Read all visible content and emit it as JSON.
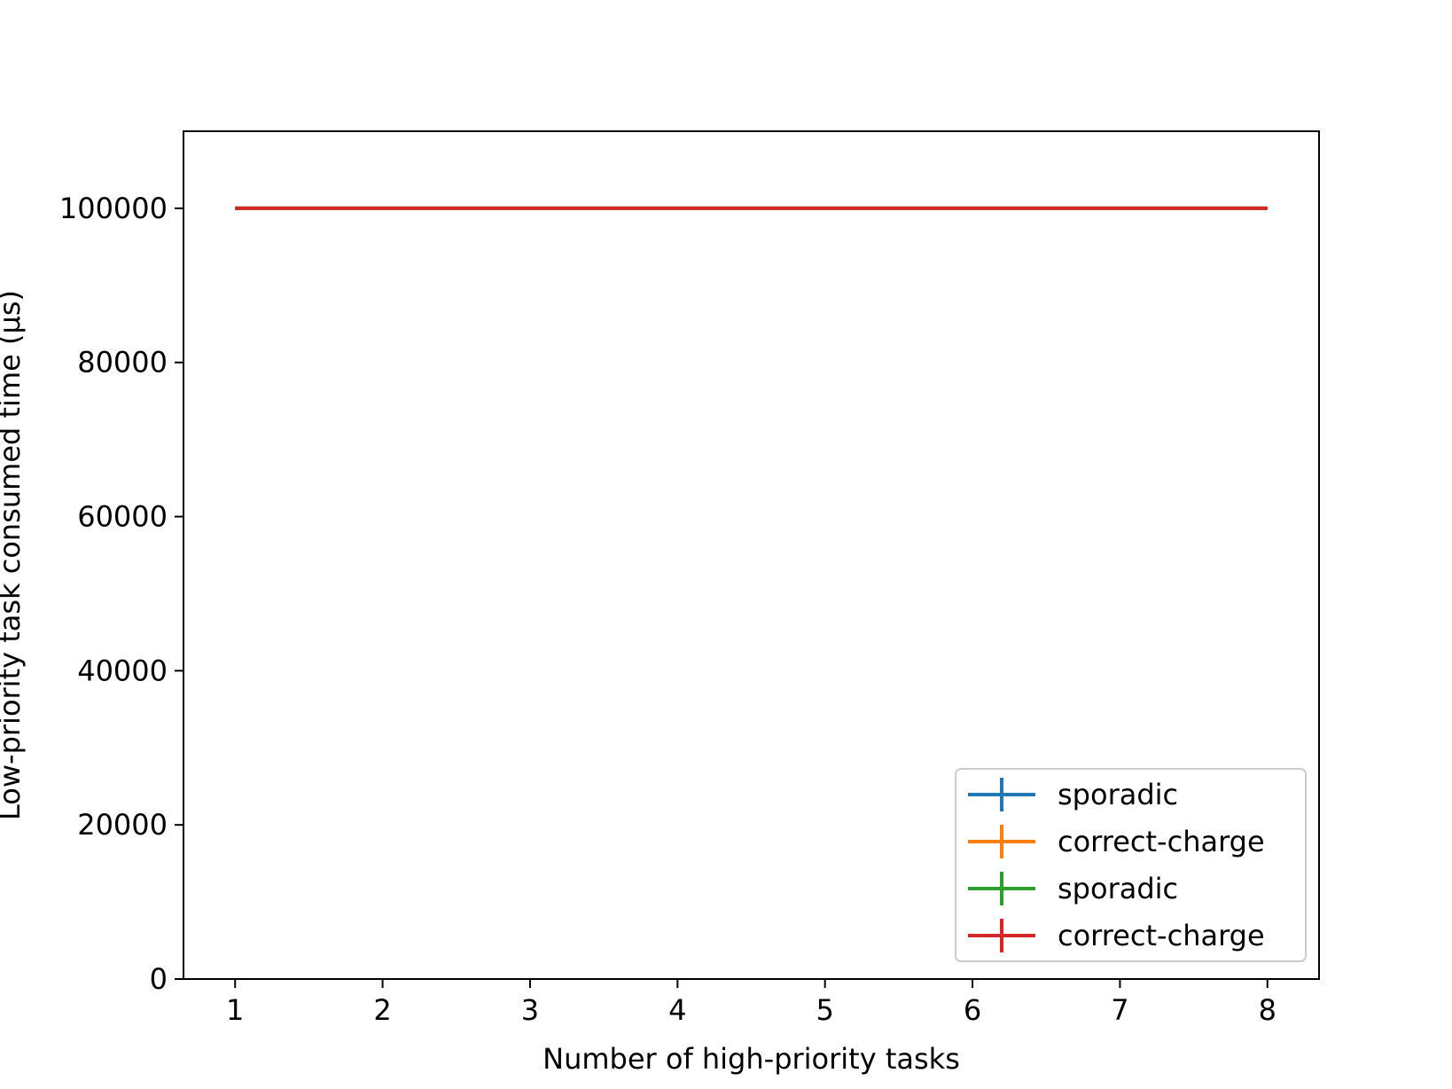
{
  "chart_data": {
    "type": "line",
    "title": "",
    "xlabel": "Number of high-priority tasks",
    "ylabel": "Low-priority task consumed time (μs)",
    "x": [
      1,
      2,
      3,
      4,
      5,
      6,
      7,
      8
    ],
    "x_ticks": [
      1,
      2,
      3,
      4,
      5,
      6,
      7,
      8
    ],
    "y_ticks": [
      0,
      20000,
      40000,
      60000,
      80000,
      100000
    ],
    "xlim": [
      0.65,
      8.35
    ],
    "ylim": [
      0,
      110000
    ],
    "grid": false,
    "legend_position": "lower-right",
    "error_bars": true,
    "series": [
      {
        "name": "sporadic",
        "color": "#1f77b4",
        "values": [
          100000,
          100000,
          100000,
          100000,
          100000,
          100000,
          100000,
          100000
        ]
      },
      {
        "name": "correct-charge",
        "color": "#ff7f0e",
        "values": [
          100000,
          100000,
          100000,
          100000,
          100000,
          100000,
          100000,
          100000
        ]
      },
      {
        "name": "sporadic",
        "color": "#2ca02c",
        "values": [
          100000,
          100000,
          100000,
          100000,
          100000,
          100000,
          100000,
          100000
        ]
      },
      {
        "name": "correct-charge",
        "color": "#d62728",
        "values": [
          100000,
          100000,
          100000,
          100000,
          100000,
          100000,
          100000,
          100000
        ]
      }
    ]
  }
}
